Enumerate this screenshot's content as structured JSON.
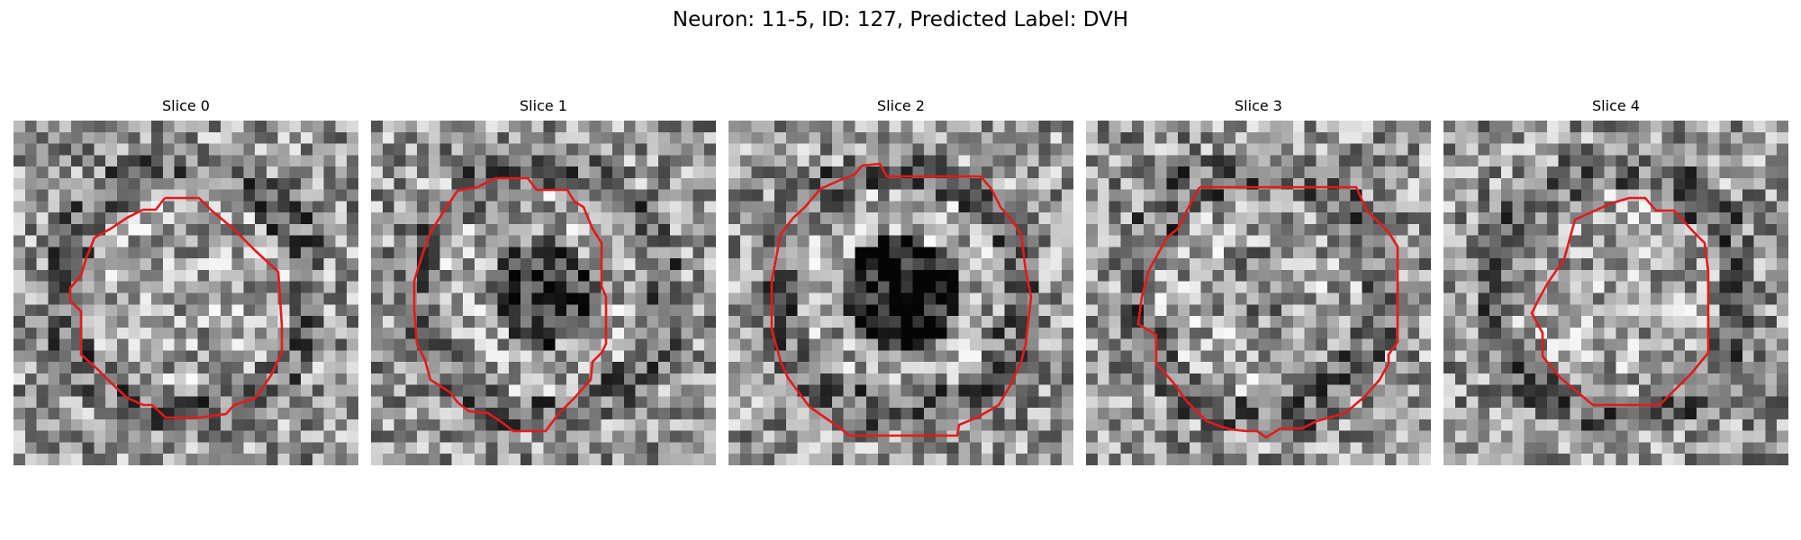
{
  "figure": {
    "title": "Neuron: 11-5, ID: 127, Predicted Label: DVH"
  },
  "panels": [
    {
      "title": "Slice 0",
      "image": "noisy grayscale microscopy slice, bright roughly uniform cell body",
      "contour_color": "#e41a1c",
      "dark_center": 0.0
    },
    {
      "title": "Slice 1",
      "image": "noisy grayscale microscopy slice, bright ring with dark nucleus",
      "contour_color": "#e41a1c",
      "dark_center": 0.75
    },
    {
      "title": "Slice 2",
      "image": "noisy grayscale microscopy slice, bright ring with large dark nucleus",
      "contour_color": "#e41a1c",
      "dark_center": 1.0
    },
    {
      "title": "Slice 3",
      "image": "noisy grayscale microscopy slice, mottled cell body with dark edge",
      "contour_color": "#e41a1c",
      "dark_center": 0.15
    },
    {
      "title": "Slice 4",
      "image": "noisy grayscale microscopy slice, faint cell body",
      "contour_color": "#e41a1c",
      "dark_center": 0.0
    }
  ]
}
